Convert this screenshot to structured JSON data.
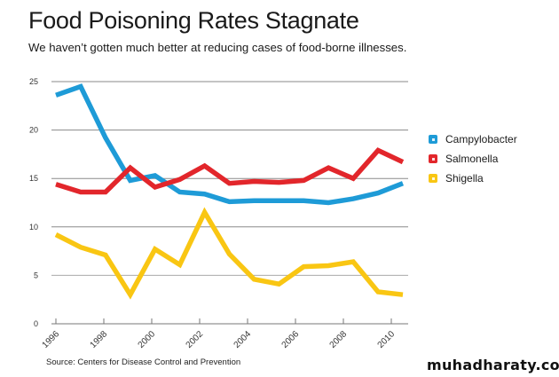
{
  "chart_data": {
    "type": "line",
    "title": "Food Poisoning Rates Stagnate",
    "subtitle": "We haven’t gotten much better at reducing cases of food-borne illnesses.",
    "xlabel": "",
    "ylabel": "",
    "x": [
      1996,
      1997,
      1998,
      1999,
      2000,
      2001,
      2002,
      2003,
      2004,
      2005,
      2006,
      2007,
      2008,
      2009,
      2010
    ],
    "x_tick_labels": [
      "1996",
      "1998",
      "2000",
      "2002",
      "2004",
      "2006",
      "2008",
      "2010"
    ],
    "y_tick_labels": [
      "0",
      "5",
      "10",
      "15",
      "20",
      "25"
    ],
    "y_ticks": [
      0,
      5,
      10,
      15,
      20,
      25
    ],
    "ylim": [
      0,
      25
    ],
    "grid": true,
    "legend_position": "right",
    "series": [
      {
        "name": "Campylobacter",
        "color": "#1e9bd7",
        "values": [
          23.6,
          24.5,
          19.2,
          14.8,
          15.3,
          13.6,
          13.4,
          12.6,
          12.7,
          12.7,
          12.7,
          12.5,
          12.9,
          13.5,
          14.5
        ]
      },
      {
        "name": "Salmonella",
        "color": "#e2262b",
        "values": [
          14.4,
          13.6,
          13.6,
          16.1,
          14.1,
          14.9,
          16.3,
          14.5,
          14.7,
          14.6,
          14.8,
          16.1,
          15.0,
          17.9,
          16.7
        ]
      },
      {
        "name": "Shigella",
        "color": "#f9c613",
        "values": [
          9.2,
          7.9,
          7.1,
          3.0,
          7.7,
          6.1,
          11.5,
          7.2,
          4.6,
          4.1,
          5.9,
          6.0,
          6.4,
          3.3,
          3.0
        ]
      }
    ],
    "source": "Source: Centers for Disease Control and Prevention"
  },
  "watermark": "muhadharaty.com"
}
